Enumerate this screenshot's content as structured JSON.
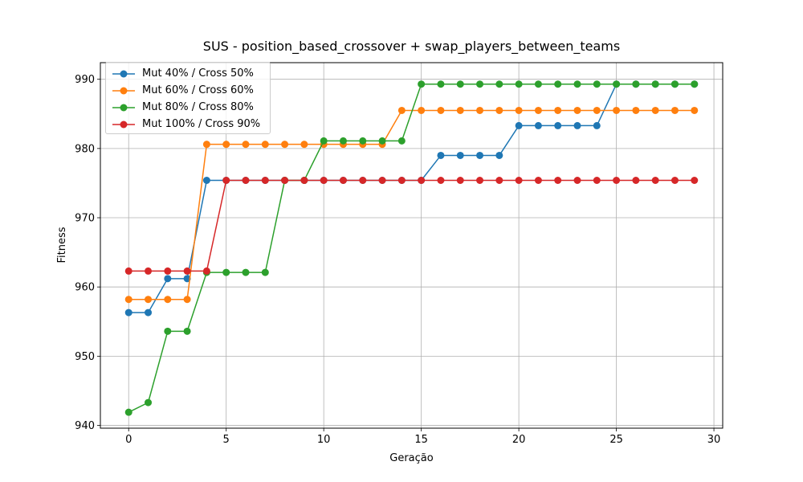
{
  "chart_data": {
    "type": "line",
    "title": "SUS - position_based_crossover + swap_players_between_teams",
    "xlabel": "Geração",
    "ylabel": "Fitness",
    "xlim": [
      -1.45,
      30.45
    ],
    "ylim": [
      939.6,
      992.4
    ],
    "xticks": [
      0,
      5,
      10,
      15,
      20,
      25,
      30
    ],
    "yticks": [
      940,
      950,
      960,
      970,
      980,
      990
    ],
    "grid": true,
    "legend_position": "upper-left",
    "x": [
      0,
      1,
      2,
      3,
      4,
      5,
      6,
      7,
      8,
      9,
      10,
      11,
      12,
      13,
      14,
      15,
      16,
      17,
      18,
      19,
      20,
      21,
      22,
      23,
      24,
      25,
      26,
      27,
      28,
      29
    ],
    "series": [
      {
        "name": "Mut 40% / Cross 50%",
        "color": "#1f77b4",
        "values": [
          956.3,
          956.3,
          961.2,
          961.2,
          975.4,
          975.4,
          975.4,
          975.4,
          975.4,
          975.4,
          975.4,
          975.4,
          975.4,
          975.4,
          975.4,
          975.4,
          979.0,
          979.0,
          979.0,
          979.0,
          983.3,
          983.3,
          983.3,
          983.3,
          983.3,
          989.3,
          989.3,
          989.3,
          989.3,
          989.3
        ]
      },
      {
        "name": "Mut 60% / Cross 60%",
        "color": "#ff7f0e",
        "values": [
          958.2,
          958.2,
          958.2,
          958.2,
          980.6,
          980.6,
          980.6,
          980.6,
          980.6,
          980.6,
          980.6,
          980.6,
          980.6,
          980.6,
          985.5,
          985.5,
          985.5,
          985.5,
          985.5,
          985.5,
          985.5,
          985.5,
          985.5,
          985.5,
          985.5,
          985.5,
          985.5,
          985.5,
          985.5,
          985.5
        ]
      },
      {
        "name": "Mut 80% / Cross 80%",
        "color": "#2ca02c",
        "values": [
          941.9,
          943.3,
          953.6,
          953.6,
          962.1,
          962.1,
          962.1,
          962.1,
          975.4,
          975.4,
          981.1,
          981.1,
          981.1,
          981.1,
          981.1,
          989.3,
          989.3,
          989.3,
          989.3,
          989.3,
          989.3,
          989.3,
          989.3,
          989.3,
          989.3,
          989.3,
          989.3,
          989.3,
          989.3,
          989.3
        ]
      },
      {
        "name": "Mut 100% / Cross 90%",
        "color": "#d62728",
        "values": [
          962.3,
          962.3,
          962.3,
          962.3,
          962.3,
          975.4,
          975.4,
          975.4,
          975.4,
          975.4,
          975.4,
          975.4,
          975.4,
          975.4,
          975.4,
          975.4,
          975.4,
          975.4,
          975.4,
          975.4,
          975.4,
          975.4,
          975.4,
          975.4,
          975.4,
          975.4,
          975.4,
          975.4,
          975.4,
          975.4
        ]
      }
    ]
  }
}
